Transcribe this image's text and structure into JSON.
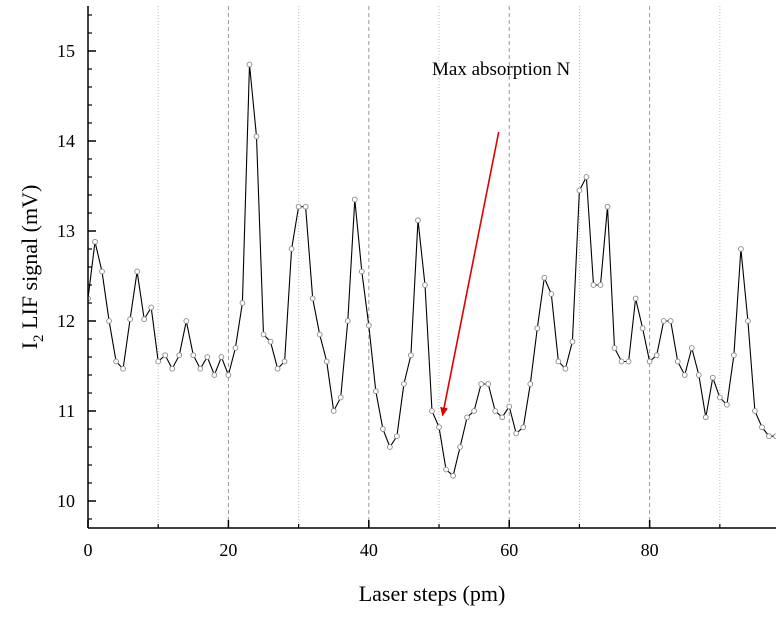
{
  "chart_data": {
    "type": "line",
    "xlabel": "Laser steps (pm)",
    "ylabel": {
      "prefix": "I",
      "sub": "2",
      "rest": " LIF signal (mV)"
    },
    "xlim": [
      0,
      98
    ],
    "ylim": [
      9.7,
      15.5
    ],
    "x_ticks": [
      0,
      20,
      40,
      60,
      80
    ],
    "x_tick_labels": [
      "0",
      "20",
      "40",
      "60",
      "80"
    ],
    "x_minor_ticks": [
      10,
      30,
      50,
      70,
      90
    ],
    "y_ticks": [
      10,
      11,
      12,
      13,
      14,
      15
    ],
    "y_tick_labels": [
      "10",
      "11",
      "12",
      "13",
      "14",
      "15"
    ],
    "grid": {
      "major_x": "dashed",
      "minor_x": "dotted",
      "y": false
    },
    "series": [
      {
        "line_color": "#000000",
        "marker": "open-circle",
        "x": [
          0,
          1,
          2,
          3,
          4,
          5,
          6,
          7,
          8,
          9,
          10,
          11,
          12,
          13,
          14,
          15,
          16,
          17,
          18,
          19,
          20,
          21,
          22,
          23,
          24,
          25,
          26,
          27,
          28,
          29,
          30,
          31,
          32,
          33,
          34,
          35,
          36,
          37,
          38,
          39,
          40,
          41,
          42,
          43,
          44,
          45,
          46,
          47,
          48,
          49,
          50,
          51,
          52,
          53,
          54,
          55,
          56,
          57,
          58,
          59,
          60,
          61,
          62,
          63,
          64,
          65,
          66,
          67,
          68,
          69,
          70,
          71,
          72,
          73,
          74,
          75,
          76,
          77,
          78,
          79,
          80,
          81,
          82,
          83,
          84,
          85,
          86,
          87,
          88,
          89,
          90,
          91,
          92,
          93,
          94,
          95,
          96,
          97,
          98
        ],
        "y": [
          12.25,
          12.88,
          12.55,
          12.0,
          11.55,
          11.47,
          12.02,
          12.55,
          12.02,
          12.15,
          11.55,
          11.62,
          11.47,
          11.62,
          12.0,
          11.62,
          11.47,
          11.6,
          11.4,
          11.6,
          11.4,
          11.7,
          12.2,
          14.85,
          14.05,
          11.85,
          11.77,
          11.47,
          11.55,
          12.8,
          13.27,
          13.27,
          12.25,
          11.85,
          11.55,
          11.0,
          11.15,
          12.0,
          13.35,
          12.55,
          11.95,
          11.22,
          10.8,
          10.6,
          10.72,
          11.3,
          11.62,
          13.12,
          12.4,
          11.0,
          10.82,
          10.35,
          10.28,
          10.6,
          10.93,
          11.0,
          11.3,
          11.3,
          11.0,
          10.93,
          11.05,
          10.75,
          10.82,
          11.3,
          11.92,
          12.48,
          12.3,
          11.55,
          11.47,
          11.77,
          13.45,
          13.6,
          12.4,
          12.4,
          13.27,
          11.7,
          11.55,
          11.55,
          12.25,
          11.92,
          11.55,
          11.62,
          12.0,
          12.0,
          11.55,
          11.4,
          11.7,
          11.4,
          10.93,
          11.37,
          11.15,
          11.07,
          11.62,
          12.8,
          12.0,
          11.0,
          10.82,
          10.72,
          10.72
        ]
      }
    ],
    "annotations": [
      {
        "text": "Max absorption N",
        "arrow_color": "#e00000",
        "arrow_from": [
          58.5,
          14.1
        ],
        "arrow_to": [
          50.5,
          10.95
        ]
      }
    ]
  }
}
